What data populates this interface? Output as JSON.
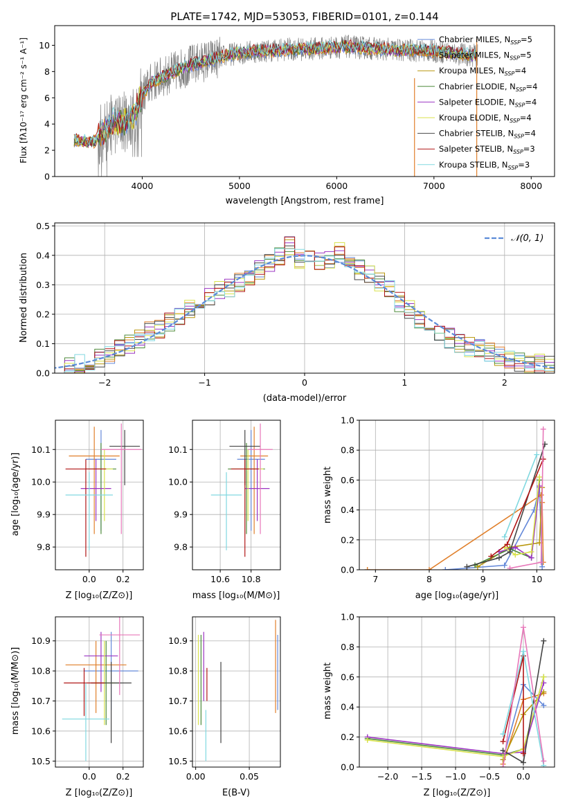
{
  "figure": {
    "title": "PLATE=1742, MJD=53053, FIBERID=0101, z=0.144"
  },
  "chart_data": [
    {
      "id": "spectrum",
      "type": "line",
      "xlabel": "wavelength [Angstrom, rest frame]",
      "ylabel": "Flux [fλ10⁻¹⁷ erg cm⁻² s⁻¹ A⁻¹]",
      "xlim": [
        3100,
        8240
      ],
      "ylim": [
        0,
        11.5
      ],
      "xticks": [
        4000,
        5000,
        6000,
        7000,
        8000
      ],
      "yticks": [
        0,
        2,
        4,
        6,
        8,
        10
      ],
      "grid": false,
      "legend_position": "top-right",
      "data_range": [
        3300,
        7450
      ],
      "model_curve": {
        "x": [
          3300,
          3400,
          3500,
          3600,
          3700,
          3800,
          3900,
          4000,
          4100,
          4300,
          4500,
          4700,
          4900,
          5100,
          5300,
          5500,
          5700,
          5900,
          6100,
          6300,
          6500,
          6700,
          6900,
          7100,
          7300,
          7450
        ],
        "y": [
          2.8,
          2.7,
          2.6,
          3.4,
          4.0,
          4.2,
          4.4,
          6.2,
          7.2,
          7.9,
          8.5,
          8.9,
          9.3,
          9.5,
          9.6,
          9.7,
          9.7,
          9.8,
          9.9,
          9.8,
          9.7,
          9.6,
          9.6,
          9.5,
          9.3,
          9.2
        ]
      },
      "series": [
        {
          "name": "Chabrier MILES, N_SSP=5",
          "color": "#6388d9"
        },
        {
          "name": "Salpeter MILES, N_SSP=5",
          "color": "#e07f2a"
        },
        {
          "name": "Kroupa MILES, N_SSP=4",
          "color": "#b8960c"
        },
        {
          "name": "Chabrier ELODIE, N_SSP=4",
          "color": "#4d8a3a"
        },
        {
          "name": "Salpeter ELODIE, N_SSP=4",
          "color": "#9b34c2"
        },
        {
          "name": "Kroupa ELODIE, N_SSP=4",
          "color": "#d8e24a"
        },
        {
          "name": "Chabrier STELIB, N_SSP=4",
          "color": "#444444"
        },
        {
          "name": "Salpeter STELIB, N_SSP=3",
          "color": "#b01414"
        },
        {
          "name": "Kroupa STELIB, N_SSP=3",
          "color": "#80d8e0"
        }
      ]
    },
    {
      "id": "residuals",
      "type": "line",
      "xlabel": "(data-model)/error",
      "ylabel": "Normed distribution",
      "xlim": [
        -2.5,
        2.5
      ],
      "ylim": [
        0,
        0.51
      ],
      "xticks": [
        -2,
        -1,
        0,
        1,
        2
      ],
      "yticks": [
        0.0,
        0.1,
        0.2,
        0.3,
        0.4,
        0.5
      ],
      "grid": true,
      "legend_position": "top-right",
      "reference": {
        "name": "N(0,1)",
        "color": "#5b8bd8"
      },
      "bin_centers": [
        -2.45,
        -2.35,
        -2.25,
        -2.15,
        -2.05,
        -1.95,
        -1.85,
        -1.75,
        -1.65,
        -1.55,
        -1.45,
        -1.35,
        -1.25,
        -1.15,
        -1.05,
        -0.95,
        -0.85,
        -0.75,
        -0.65,
        -0.55,
        -0.45,
        -0.35,
        -0.25,
        -0.15,
        -0.05,
        0.05,
        0.15,
        0.25,
        0.35,
        0.45,
        0.55,
        0.65,
        0.75,
        0.85,
        0.95,
        1.05,
        1.15,
        1.25,
        1.35,
        1.45,
        1.55,
        1.65,
        1.75,
        1.85,
        1.95,
        2.05,
        2.15,
        2.25,
        2.35,
        2.45
      ],
      "hist_values": [
        0.02,
        0.025,
        0.03,
        0.04,
        0.05,
        0.06,
        0.08,
        0.1,
        0.12,
        0.14,
        0.15,
        0.17,
        0.19,
        0.22,
        0.24,
        0.26,
        0.28,
        0.29,
        0.31,
        0.33,
        0.35,
        0.38,
        0.4,
        0.43,
        0.39,
        0.4,
        0.38,
        0.39,
        0.41,
        0.37,
        0.35,
        0.33,
        0.31,
        0.29,
        0.24,
        0.22,
        0.18,
        0.16,
        0.14,
        0.12,
        0.1,
        0.09,
        0.08,
        0.07,
        0.06,
        0.05,
        0.04,
        0.035,
        0.03,
        0.025
      ]
    },
    {
      "id": "age-vs-Z",
      "type": "scatter",
      "xlabel": "Z [log₁₀(Z/Z⊙)]",
      "ylabel": "age  [log₁₀(age/yr)]",
      "xlim": [
        -0.2,
        0.32
      ],
      "ylim": [
        9.73,
        10.19
      ],
      "xticks": [
        0.0,
        0.2
      ],
      "yticks": [
        9.8,
        9.9,
        10.0,
        10.1
      ],
      "grid": true,
      "points": [
        {
          "x": 0.07,
          "y": 10.07,
          "xerr": 0.09,
          "yerr": [
            0.22,
            0.09
          ],
          "color": "#6388d9"
        },
        {
          "x": 0.03,
          "y": 10.08,
          "xerr": 0.15,
          "yerr": [
            0.24,
            0.09
          ],
          "color": "#e07f2a"
        },
        {
          "x": 0.07,
          "y": 10.04,
          "xerr": 0.09,
          "yerr": [
            0.2,
            0.08
          ],
          "color": "#4d8a3a"
        },
        {
          "x": 0.04,
          "y": 9.98,
          "xerr": 0.09,
          "yerr": [
            0.1,
            0.09
          ],
          "color": "#9b34c2"
        },
        {
          "x": 0.09,
          "y": 10.04,
          "xerr": 0.05,
          "yerr": [
            0.16,
            0.06
          ],
          "color": "#d8e24a"
        },
        {
          "x": 0.21,
          "y": 10.11,
          "xerr": 0.09,
          "yerr": [
            0.12,
            0.05
          ],
          "color": "#444444"
        },
        {
          "x": -0.02,
          "y": 10.04,
          "xerr": 0.12,
          "yerr": [
            0.27,
            0.03
          ],
          "color": "#b01414"
        },
        {
          "x": 0.0,
          "y": 9.96,
          "xerr": 0.14,
          "yerr": [
            0.17,
            0.07
          ],
          "color": "#80d8e0"
        },
        {
          "x": 0.19,
          "y": 10.1,
          "xerr": 0.12,
          "yerr": [
            0.26,
            0.08
          ],
          "color": "#e777b9"
        }
      ]
    },
    {
      "id": "age-vs-mass",
      "type": "scatter",
      "xlabel": "mass [log₁₀(M/M⊙)]",
      "ylabel": "",
      "xlim": [
        10.42,
        10.99
      ],
      "ylim": [
        9.73,
        10.19
      ],
      "xticks": [
        10.6,
        10.8
      ],
      "yticks": [
        9.8,
        9.9,
        10.0,
        10.1
      ],
      "grid": true,
      "points": [
        {
          "x": 10.8,
          "y": 10.07,
          "xerr": 0.09,
          "yerr": [
            0.22,
            0.09
          ],
          "color": "#6388d9"
        },
        {
          "x": 10.82,
          "y": 10.08,
          "xerr": 0.09,
          "yerr": [
            0.24,
            0.09
          ],
          "color": "#e07f2a"
        },
        {
          "x": 10.77,
          "y": 10.04,
          "xerr": 0.12,
          "yerr": [
            0.2,
            0.08
          ],
          "color": "#4d8a3a"
        },
        {
          "x": 10.84,
          "y": 9.98,
          "xerr": 0.08,
          "yerr": [
            0.1,
            0.09
          ],
          "color": "#9b34c2"
        },
        {
          "x": 10.78,
          "y": 10.04,
          "xerr": 0.1,
          "yerr": [
            0.16,
            0.06
          ],
          "color": "#d8e24a"
        },
        {
          "x": 10.76,
          "y": 10.11,
          "xerr": 0.1,
          "yerr": [
            0.12,
            0.05
          ],
          "color": "#444444"
        },
        {
          "x": 10.76,
          "y": 10.04,
          "xerr": 0.09,
          "yerr": [
            0.27,
            0.03
          ],
          "color": "#b01414"
        },
        {
          "x": 10.64,
          "y": 9.96,
          "xerr": 0.1,
          "yerr": [
            0.17,
            0.07
          ],
          "color": "#80d8e0"
        },
        {
          "x": 10.86,
          "y": 10.1,
          "xerr": 0.08,
          "yerr": [
            0.26,
            0.08
          ],
          "color": "#e777b9"
        }
      ]
    },
    {
      "id": "weight-vs-age",
      "type": "line",
      "xlabel": "age  [log₁₀(age/yr)]",
      "ylabel": "mass weight",
      "xlim": [
        6.7,
        10.33
      ],
      "ylim": [
        0,
        1.0
      ],
      "xticks": [
        7,
        8,
        9,
        10
      ],
      "yticks": [
        0.0,
        0.2,
        0.4,
        0.6,
        0.8,
        1.0
      ],
      "grid": true,
      "series": [
        {
          "name": "Chabrier MILES, N_SSP=5",
          "color": "#6388d9",
          "x": [
            8.3,
            9.4,
            9.95,
            10.05,
            10.1
          ],
          "y": [
            0.0,
            0.03,
            0.4,
            0.55,
            0.02
          ]
        },
        {
          "name": "Salpeter MILES, N_SSP=5",
          "color": "#e07f2a",
          "x": [
            6.85,
            8.0,
            10.08,
            10.1,
            10.12
          ],
          "y": [
            0.0,
            0.0,
            0.5,
            0.45,
            0.05
          ]
        },
        {
          "name": "Kroupa MILES, N_SSP=4",
          "color": "#b8960c",
          "x": [
            8.9,
            9.5,
            10.05,
            10.1
          ],
          "y": [
            0.02,
            0.15,
            0.18,
            0.55
          ]
        },
        {
          "name": "Chabrier ELODIE, N_SSP=4",
          "color": "#4d8a3a",
          "x": [
            8.85,
            9.5,
            9.9,
            10.05
          ],
          "y": [
            0.03,
            0.14,
            0.08,
            0.6
          ]
        },
        {
          "name": "Salpeter ELODIE, N_SSP=4",
          "color": "#9b34c2",
          "x": [
            9.3,
            9.6,
            9.9,
            10.05
          ],
          "y": [
            0.12,
            0.15,
            0.08,
            0.56
          ]
        },
        {
          "name": "Kroupa ELODIE, N_SSP=4",
          "color": "#d8e24a",
          "x": [
            9.4,
            9.6,
            9.9,
            10.05
          ],
          "y": [
            0.15,
            0.1,
            0.12,
            0.62
          ]
        },
        {
          "name": "Chabrier STELIB, N_SSP=4",
          "color": "#444444",
          "x": [
            8.7,
            9.3,
            9.5,
            10.15
          ],
          "y": [
            0.02,
            0.08,
            0.12,
            0.84
          ]
        },
        {
          "name": "Salpeter STELIB, N_SSP=3",
          "color": "#b01414",
          "x": [
            9.15,
            9.45,
            10.12
          ],
          "y": [
            0.09,
            0.17,
            0.74
          ]
        },
        {
          "name": "Kroupa STELIB, N_SSP=3",
          "color": "#80d8e0",
          "x": [
            9.4,
            10.0
          ],
          "y": [
            0.22,
            0.77
          ]
        },
        {
          "name": "",
          "color": "#e777b9",
          "x": [
            9.5,
            10.08,
            10.12
          ],
          "y": [
            0.01,
            0.05,
            0.94
          ]
        }
      ]
    },
    {
      "id": "mass-vs-Z",
      "type": "scatter",
      "xlabel": "Z [log₁₀(Z/Z⊙)]",
      "ylabel": "mass [log₁₀(M/M⊙)]",
      "xlim": [
        -0.2,
        0.32
      ],
      "ylim": [
        10.48,
        10.98
      ],
      "xticks": [
        0.0,
        0.2
      ],
      "yticks": [
        10.5,
        10.6,
        10.7,
        10.8,
        10.9
      ],
      "grid": true,
      "points": [
        {
          "x": 0.13,
          "y": 10.8,
          "xerr": 0.16,
          "yerr": [
            0.13,
            0.13
          ],
          "color": "#6388d9"
        },
        {
          "x": 0.04,
          "y": 10.82,
          "xerr": 0.18,
          "yerr": [
            0.16,
            0.08
          ],
          "color": "#e07f2a"
        },
        {
          "x": 0.1,
          "y": 10.76,
          "xerr": 0.09,
          "yerr": [
            0.14,
            0.14
          ],
          "color": "#4d8a3a"
        },
        {
          "x": 0.07,
          "y": 10.85,
          "xerr": 0.1,
          "yerr": [
            0.12,
            0.08
          ],
          "color": "#9b34c2"
        },
        {
          "x": 0.09,
          "y": 10.76,
          "xerr": 0.06,
          "yerr": [
            0.14,
            0.14
          ],
          "color": "#d8e24a"
        },
        {
          "x": 0.13,
          "y": 10.76,
          "xerr": 0.12,
          "yerr": [
            0.2,
            0.07
          ],
          "color": "#444444"
        },
        {
          "x": -0.03,
          "y": 10.76,
          "xerr": 0.12,
          "yerr": [
            0.11,
            0.05
          ],
          "color": "#b01414"
        },
        {
          "x": -0.02,
          "y": 10.64,
          "xerr": 0.14,
          "yerr": [
            0.14,
            0.12
          ],
          "color": "#80d8e0"
        },
        {
          "x": 0.18,
          "y": 10.92,
          "xerr": 0.12,
          "yerr": [
            0.2,
            0.06
          ],
          "color": "#e777b9"
        }
      ]
    },
    {
      "id": "mass-vs-EBV",
      "type": "scatter",
      "xlabel": "E(B-V)",
      "ylabel": "",
      "xlim": [
        -0.003,
        0.079
      ],
      "ylim": [
        10.48,
        10.98
      ],
      "xticks": [
        0.0,
        0.05
      ],
      "yticks": [
        10.5,
        10.6,
        10.7,
        10.8,
        10.9
      ],
      "grid": true,
      "points": [
        {
          "x": 0.0025,
          "y": 10.8,
          "yerr": [
            0.18,
            0.12
          ],
          "color": "#d8e24a"
        },
        {
          "x": 0.005,
          "y": 10.75,
          "yerr": [
            0.13,
            0.17
          ],
          "color": "#4d8a3a"
        },
        {
          "x": 0.0075,
          "y": 10.8,
          "yerr": [
            0.1,
            0.13
          ],
          "color": "#9b34c2"
        },
        {
          "x": 0.0095,
          "y": 10.6,
          "yerr": [
            0.1,
            0.07
          ],
          "color": "#80d8e0"
        },
        {
          "x": 0.0105,
          "y": 10.76,
          "yerr": [
            0.06,
            0.05
          ],
          "color": "#b01414"
        },
        {
          "x": 0.0235,
          "y": 10.7,
          "yerr": [
            0.14,
            0.13
          ],
          "color": "#444444"
        },
        {
          "x": 0.0745,
          "y": 10.8,
          "yerr": [
            0.14,
            0.17
          ],
          "color": "#e07f2a"
        },
        {
          "x": 0.0765,
          "y": 10.8,
          "yerr": [
            0.13,
            0.12
          ],
          "color": "#6388d9"
        }
      ]
    },
    {
      "id": "weight-vs-Z",
      "type": "line",
      "xlabel": "Z [log₁₀(Z/Z⊙)]",
      "ylabel": "mass weight",
      "xlim": [
        -2.42,
        0.46
      ],
      "ylim": [
        0,
        1.0
      ],
      "xticks": [
        -2.0,
        -1.5,
        -1.0,
        -0.5,
        0.0
      ],
      "yticks": [
        0.0,
        0.2,
        0.4,
        0.6,
        0.8,
        1.0
      ],
      "grid": true,
      "series": [
        {
          "name": "Chabrier MILES, N_SSP=5",
          "color": "#6388d9",
          "x": [
            -0.3,
            0.0,
            0.3
          ],
          "y": [
            0.05,
            0.55,
            0.41
          ]
        },
        {
          "name": "Salpeter MILES, N_SSP=5",
          "color": "#e07f2a",
          "x": [
            -0.3,
            0.0,
            0.3
          ],
          "y": [
            0.02,
            0.45,
            0.49
          ]
        },
        {
          "name": "Kroupa MILES, N_SSP=4",
          "color": "#b8960c",
          "x": [
            -0.3,
            0.0,
            0.3
          ],
          "y": [
            0.05,
            0.35,
            0.5
          ]
        },
        {
          "name": "Chabrier ELODIE, N_SSP=4",
          "color": "#4d8a3a",
          "x": [
            -2.3,
            -0.3,
            0.0,
            0.3
          ],
          "y": [
            0.19,
            0.08,
            0.12,
            0.6
          ]
        },
        {
          "name": "Salpeter ELODIE, N_SSP=4",
          "color": "#9b34c2",
          "x": [
            -2.3,
            -0.3,
            0.0,
            0.3
          ],
          "y": [
            0.2,
            0.09,
            0.1,
            0.56
          ]
        },
        {
          "name": "Kroupa ELODIE, N_SSP=4",
          "color": "#d8e24a",
          "x": [
            -2.3,
            -0.3,
            0.0,
            0.3
          ],
          "y": [
            0.18,
            0.07,
            0.12,
            0.6
          ]
        },
        {
          "name": "Chabrier STELIB, N_SSP=4",
          "color": "#444444",
          "x": [
            -0.3,
            0.0,
            0.3
          ],
          "y": [
            0.11,
            0.03,
            0.84
          ]
        },
        {
          "name": "Salpeter STELIB, N_SSP=3",
          "color": "#b01414",
          "x": [
            -0.3,
            0.0,
            0.0
          ],
          "y": [
            0.17,
            0.74,
            0.09
          ]
        },
        {
          "name": "Kroupa STELIB, N_SSP=3",
          "color": "#80d8e0",
          "x": [
            -0.3,
            0.0,
            0.3
          ],
          "y": [
            0.22,
            0.77,
            0.01
          ]
        },
        {
          "name": "",
          "color": "#e777b9",
          "x": [
            -0.3,
            0.0,
            0.3
          ],
          "y": [
            0.0,
            0.93,
            0.04
          ]
        }
      ]
    }
  ]
}
